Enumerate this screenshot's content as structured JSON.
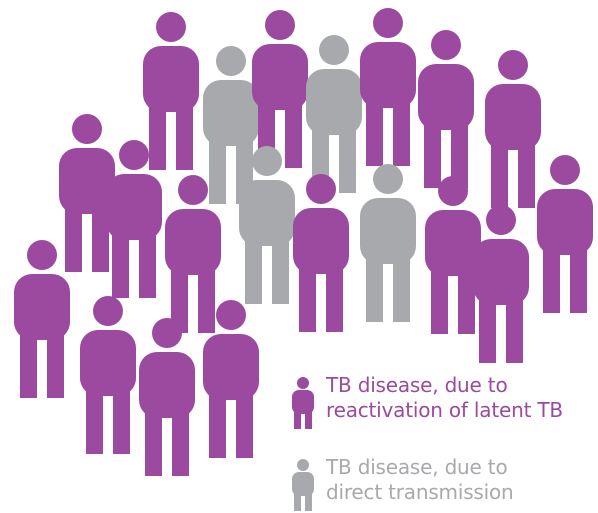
{
  "colors": {
    "purple": "#9b4a9f",
    "gray": "#a7a9ac"
  },
  "figures": [
    {
      "type": "reactivation"
    },
    {
      "type": "direct"
    },
    {
      "type": "reactivation"
    },
    {
      "type": "direct"
    },
    {
      "type": "reactivation"
    },
    {
      "type": "reactivation"
    },
    {
      "type": "reactivation"
    },
    {
      "type": "reactivation"
    },
    {
      "type": "reactivation"
    },
    {
      "type": "direct"
    },
    {
      "type": "reactivation"
    },
    {
      "type": "reactivation"
    },
    {
      "type": "direct"
    },
    {
      "type": "reactivation"
    },
    {
      "type": "reactivation"
    },
    {
      "type": "reactivation"
    },
    {
      "type": "reactivation"
    },
    {
      "type": "reactivation"
    },
    {
      "type": "reactivation"
    },
    {
      "type": "reactivation"
    },
    {
      "type": "reactivation"
    }
  ],
  "legend": {
    "reactivation": {
      "label": "TB disease, due to\nreactivation of latent TB",
      "icon": "person-icon"
    },
    "direct": {
      "label": "TB disease, due to\ndirect transmission",
      "icon": "person-icon"
    }
  }
}
